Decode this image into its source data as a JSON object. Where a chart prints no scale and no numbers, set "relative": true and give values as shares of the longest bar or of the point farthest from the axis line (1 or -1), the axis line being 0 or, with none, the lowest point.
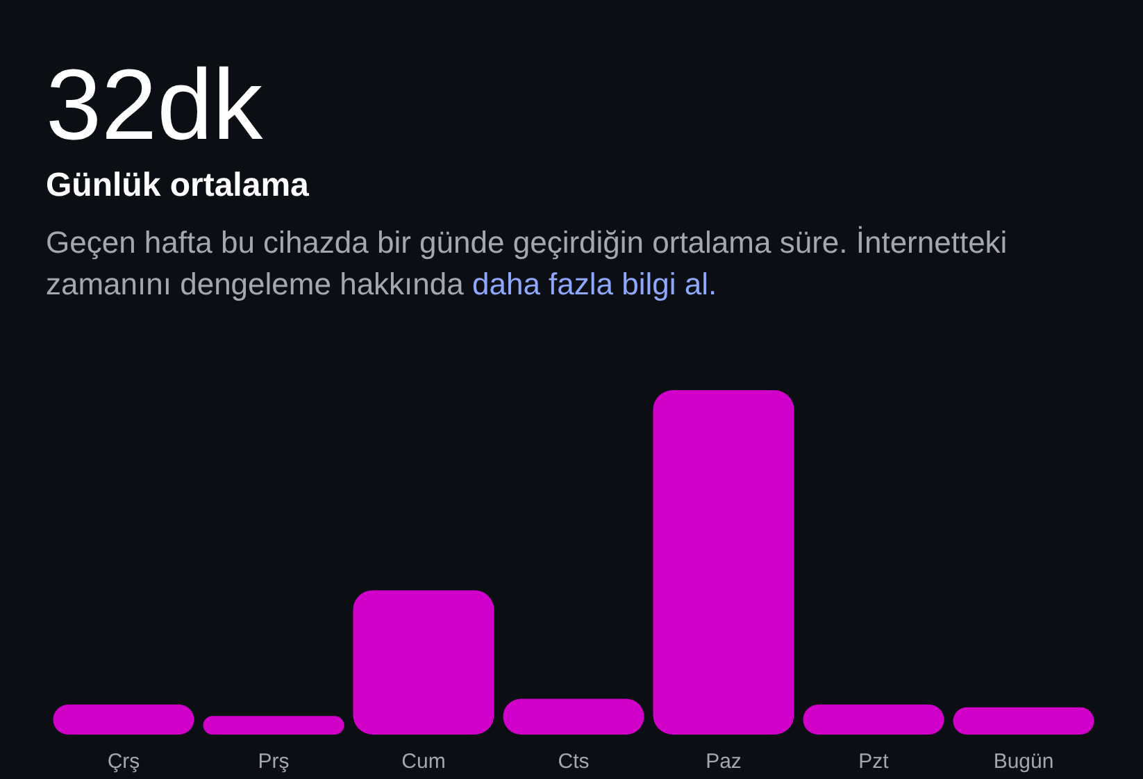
{
  "chart_data": {
    "type": "bar",
    "title": "32dk",
    "subtitle": "Günlük ortalama",
    "annotations": [
      "Geçen hafta bu cihazda bir günde geçirdiğin ortalama süre. İnternetteki zamanını dengeleme hakkında",
      "daha fazla bilgi al."
    ],
    "categories": [
      "Çrş",
      "Prş",
      "Cum",
      "Cts",
      "Paz",
      "Pzt",
      "Bugün"
    ],
    "values": [
      0.087,
      0.054,
      0.419,
      0.104,
      1,
      0.087,
      0.079
    ],
    "color": "#d000c8",
    "relative": true
  }
}
